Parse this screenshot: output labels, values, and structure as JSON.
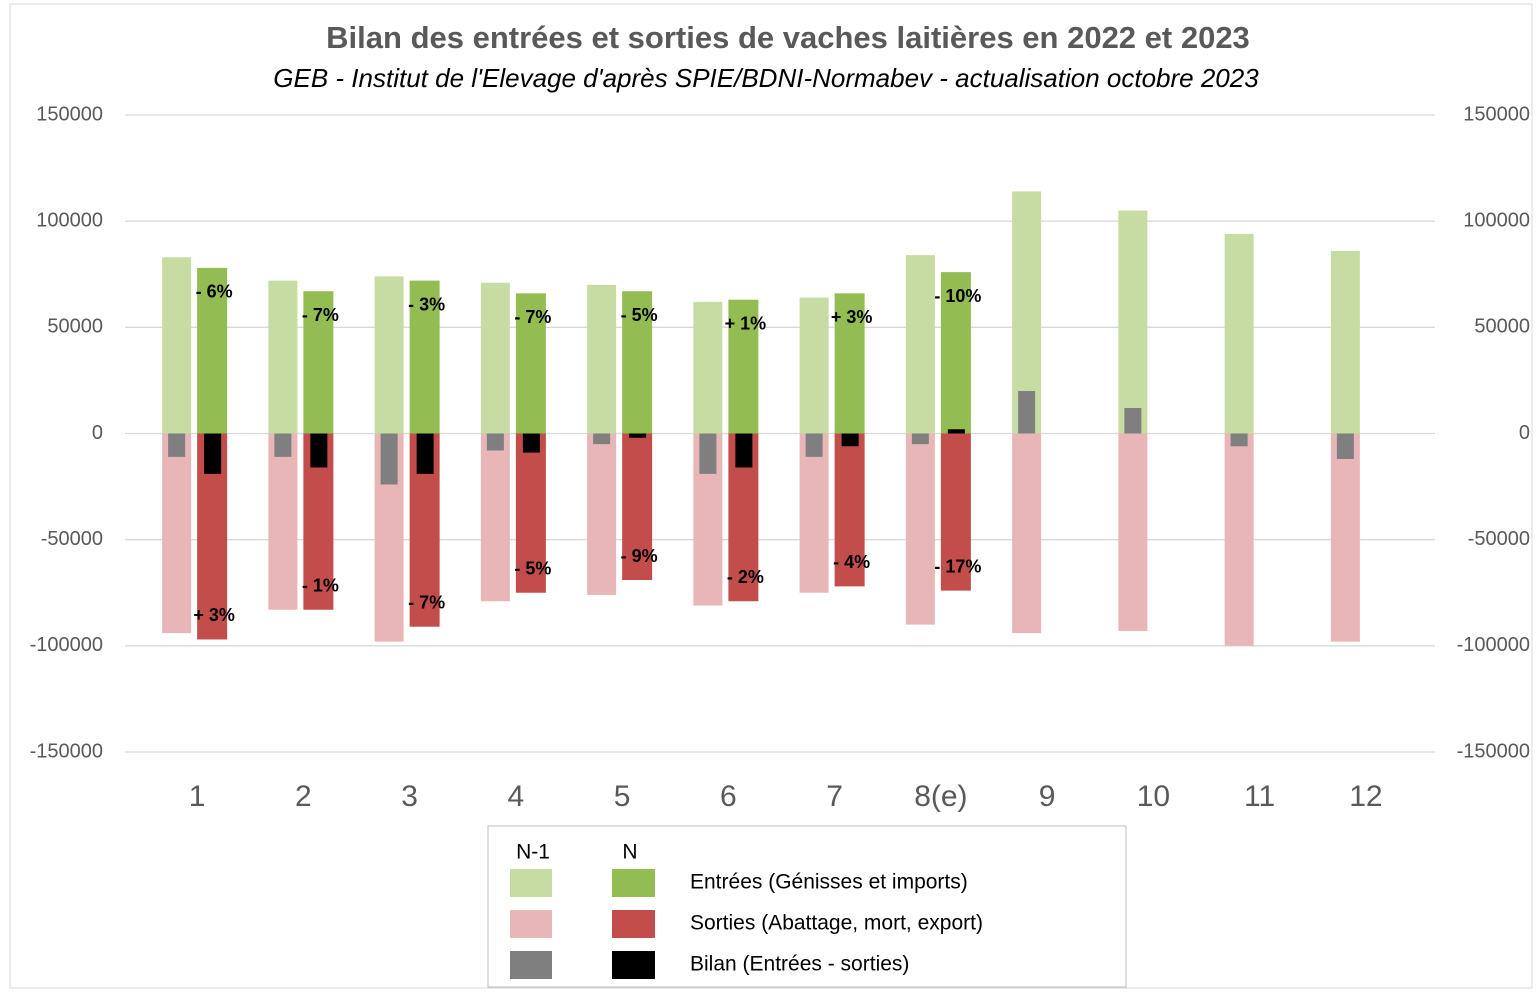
{
  "chart_data": {
    "type": "bar",
    "title": "Bilan des entrées et sorties de vaches laitières en 2022 et 2023",
    "subtitle": "GEB - Institut de l'Elevage d'après SPIE/BDNI-Normabev - actualisation octobre 2023",
    "categories": [
      "1",
      "2",
      "3",
      "4",
      "5",
      "6",
      "7",
      "8(e)",
      "9",
      "10",
      "11",
      "12"
    ],
    "ylim": [
      -150000,
      150000
    ],
    "yticks": [
      -150000,
      -100000,
      -50000,
      0,
      50000,
      100000,
      150000
    ],
    "grid": true,
    "groups": [
      {
        "name": "Entrées (Génisses et imports)",
        "series": [
          {
            "name": "N-1",
            "color": "#c6dca3",
            "values": [
              83000,
              72000,
              74000,
              71000,
              70000,
              62000,
              64000,
              84000,
              114000,
              105000,
              94000,
              86000
            ]
          },
          {
            "name": "N",
            "color": "#93bd52",
            "values": [
              78000,
              67000,
              72000,
              66000,
              67000,
              63000,
              66000,
              76000,
              null,
              null,
              null,
              null
            ],
            "annotations": [
              "- 6%",
              "- 7%",
              "- 3%",
              "- 7%",
              "- 5%",
              "+ 1%",
              "+ 3%",
              "- 10%",
              null,
              null,
              null,
              null
            ]
          }
        ]
      },
      {
        "name": "Sorties (Abattage, mort, export)",
        "series": [
          {
            "name": "N-1",
            "color": "#e8b6b6",
            "values": [
              -94000,
              -83000,
              -98000,
              -79000,
              -76000,
              -81000,
              -75000,
              -90000,
              -94000,
              -93000,
              -100000,
              -98000
            ]
          },
          {
            "name": "N",
            "color": "#c24d4b",
            "values": [
              -97000,
              -83000,
              -91000,
              -75000,
              -69000,
              -79000,
              -72000,
              -74000,
              null,
              null,
              null,
              null
            ],
            "annotations": [
              "+ 3%",
              "- 1%",
              "- 7%",
              "- 5%",
              "- 9%",
              "- 2%",
              "- 4%",
              "- 17%",
              null,
              null,
              null,
              null
            ]
          }
        ]
      },
      {
        "name": "Bilan (Entrées - sorties)",
        "series": [
          {
            "name": "N-1",
            "color": "#7f7f7f",
            "values": [
              -11000,
              -11000,
              -24000,
              -8000,
              -5000,
              -19000,
              -11000,
              -5000,
              20000,
              12000,
              -6000,
              -12000
            ]
          },
          {
            "name": "N",
            "color": "#000000",
            "values": [
              -19000,
              -16000,
              -19000,
              -9000,
              -2000,
              -16000,
              -6000,
              2000,
              null,
              null,
              null,
              null
            ]
          }
        ]
      }
    ]
  }
}
